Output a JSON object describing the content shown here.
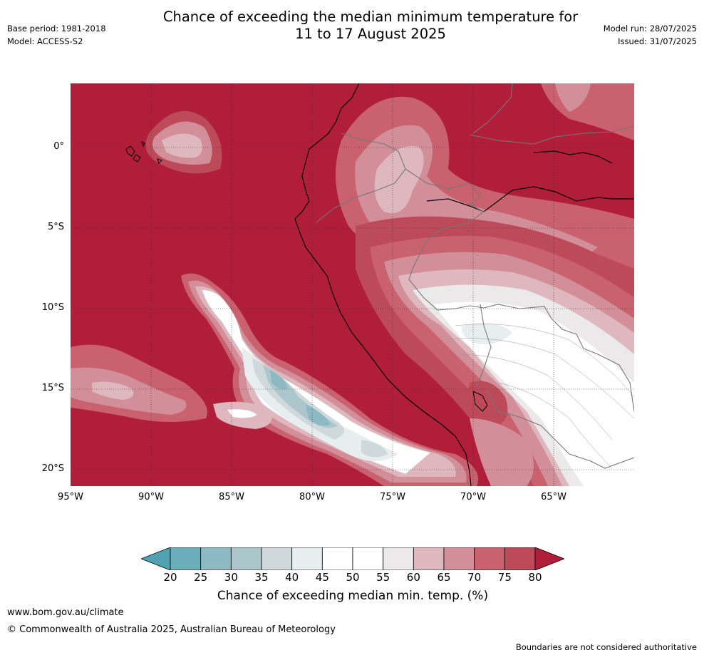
{
  "header": {
    "title_line1": "Chance of exceeding the median minimum temperature for",
    "title_line2": "11 to 17 August 2025",
    "base_period": "Base period: 1981-2018",
    "model": "Model: ACCESS-S2",
    "model_run": "Model run: 28/07/2025",
    "issued": "Issued: 31/07/2025"
  },
  "map": {
    "lat_labels": [
      "0°",
      "5°S",
      "10°S",
      "15°S",
      "20°S"
    ],
    "lon_labels": [
      "95°W",
      "90°W",
      "85°W",
      "80°W",
      "75°W",
      "70°W",
      "65°W"
    ],
    "gridlines": true,
    "region": "Eastern Pacific / western South America"
  },
  "colorbar": {
    "title": "Chance of exceeding median min. temp. (%)",
    "ticks": [
      "20",
      "25",
      "30",
      "35",
      "40",
      "45",
      "50",
      "55",
      "60",
      "65",
      "70",
      "75",
      "80"
    ],
    "colors": [
      "#6aaeba",
      "#8cb9c3",
      "#abc7cc",
      "#cfd9db",
      "#e8eef0",
      "#ffffff",
      "#ffffff",
      "#ebe9e9",
      "#dfb8bf",
      "#d38f99",
      "#c9616f",
      "#bd4a59",
      "#b11e3a"
    ],
    "under_color": "#4fa3b3",
    "over_color": "#b11e3a"
  },
  "footer": {
    "website": "www.bom.gov.au/climate",
    "copyright": "© Commonwealth of Australia 2025, Australian Bureau of Meteorology",
    "disclaimer": "Boundaries are not considered authoritative"
  }
}
